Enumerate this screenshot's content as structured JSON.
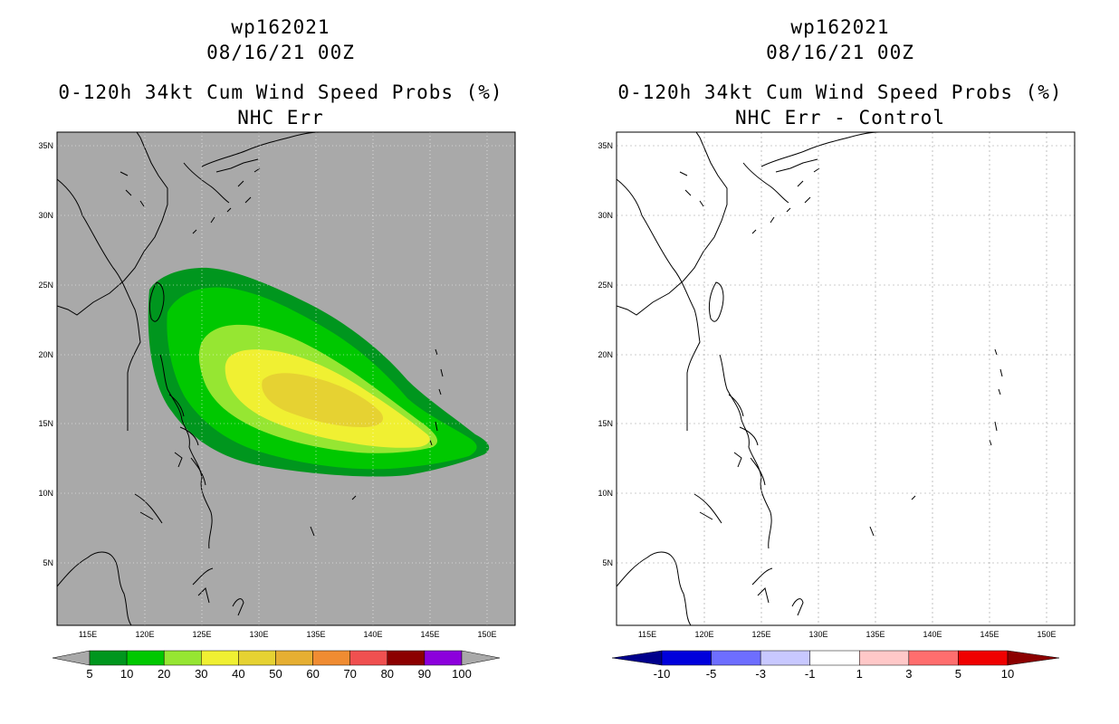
{
  "left_panel": {
    "storm_id": "wp162021",
    "datetime": "08/16/21 00Z",
    "product": "0-120h 34kt Cum Wind Speed Probs (%)",
    "subtitle": "NHC Err",
    "background_color": "#a9a9a9",
    "colorbar": {
      "labels": [
        "5",
        "10",
        "20",
        "30",
        "40",
        "50",
        "60",
        "70",
        "80",
        "90",
        "100"
      ],
      "colors": [
        "#00961e",
        "#00c800",
        "#96e632",
        "#f0f032",
        "#e6d232",
        "#e6af32",
        "#f08c32",
        "#f05050",
        "#8c0000",
        "#8c00dc"
      ],
      "arrow_color": "#a9a9a9"
    }
  },
  "right_panel": {
    "storm_id": "wp162021",
    "datetime": "08/16/21 00Z",
    "product": "0-120h 34kt Cum Wind Speed Probs (%)",
    "subtitle": "NHC Err - Control",
    "background_color": "#ffffff",
    "colorbar": {
      "labels": [
        "-10",
        "-5",
        "-3",
        "-1",
        "1",
        "3",
        "5",
        "10"
      ],
      "colors": [
        "#0000dc",
        "#6e6eff",
        "#c8c8ff",
        "#ffffff",
        "#ffc8c8",
        "#ff6e6e",
        "#f00000"
      ],
      "low_arrow": "#00008c",
      "high_arrow": "#8c0000"
    }
  },
  "axes": {
    "lon_labels": [
      "115E",
      "120E",
      "125E",
      "130E",
      "135E",
      "140E",
      "145E",
      "150E"
    ],
    "lat_labels": [
      "5N",
      "10N",
      "15N",
      "20N",
      "25N",
      "30N",
      "35N"
    ]
  },
  "probability_contours": {
    "levels_percent": [
      5,
      10,
      20,
      30,
      40
    ],
    "core_region_percent": 40
  }
}
